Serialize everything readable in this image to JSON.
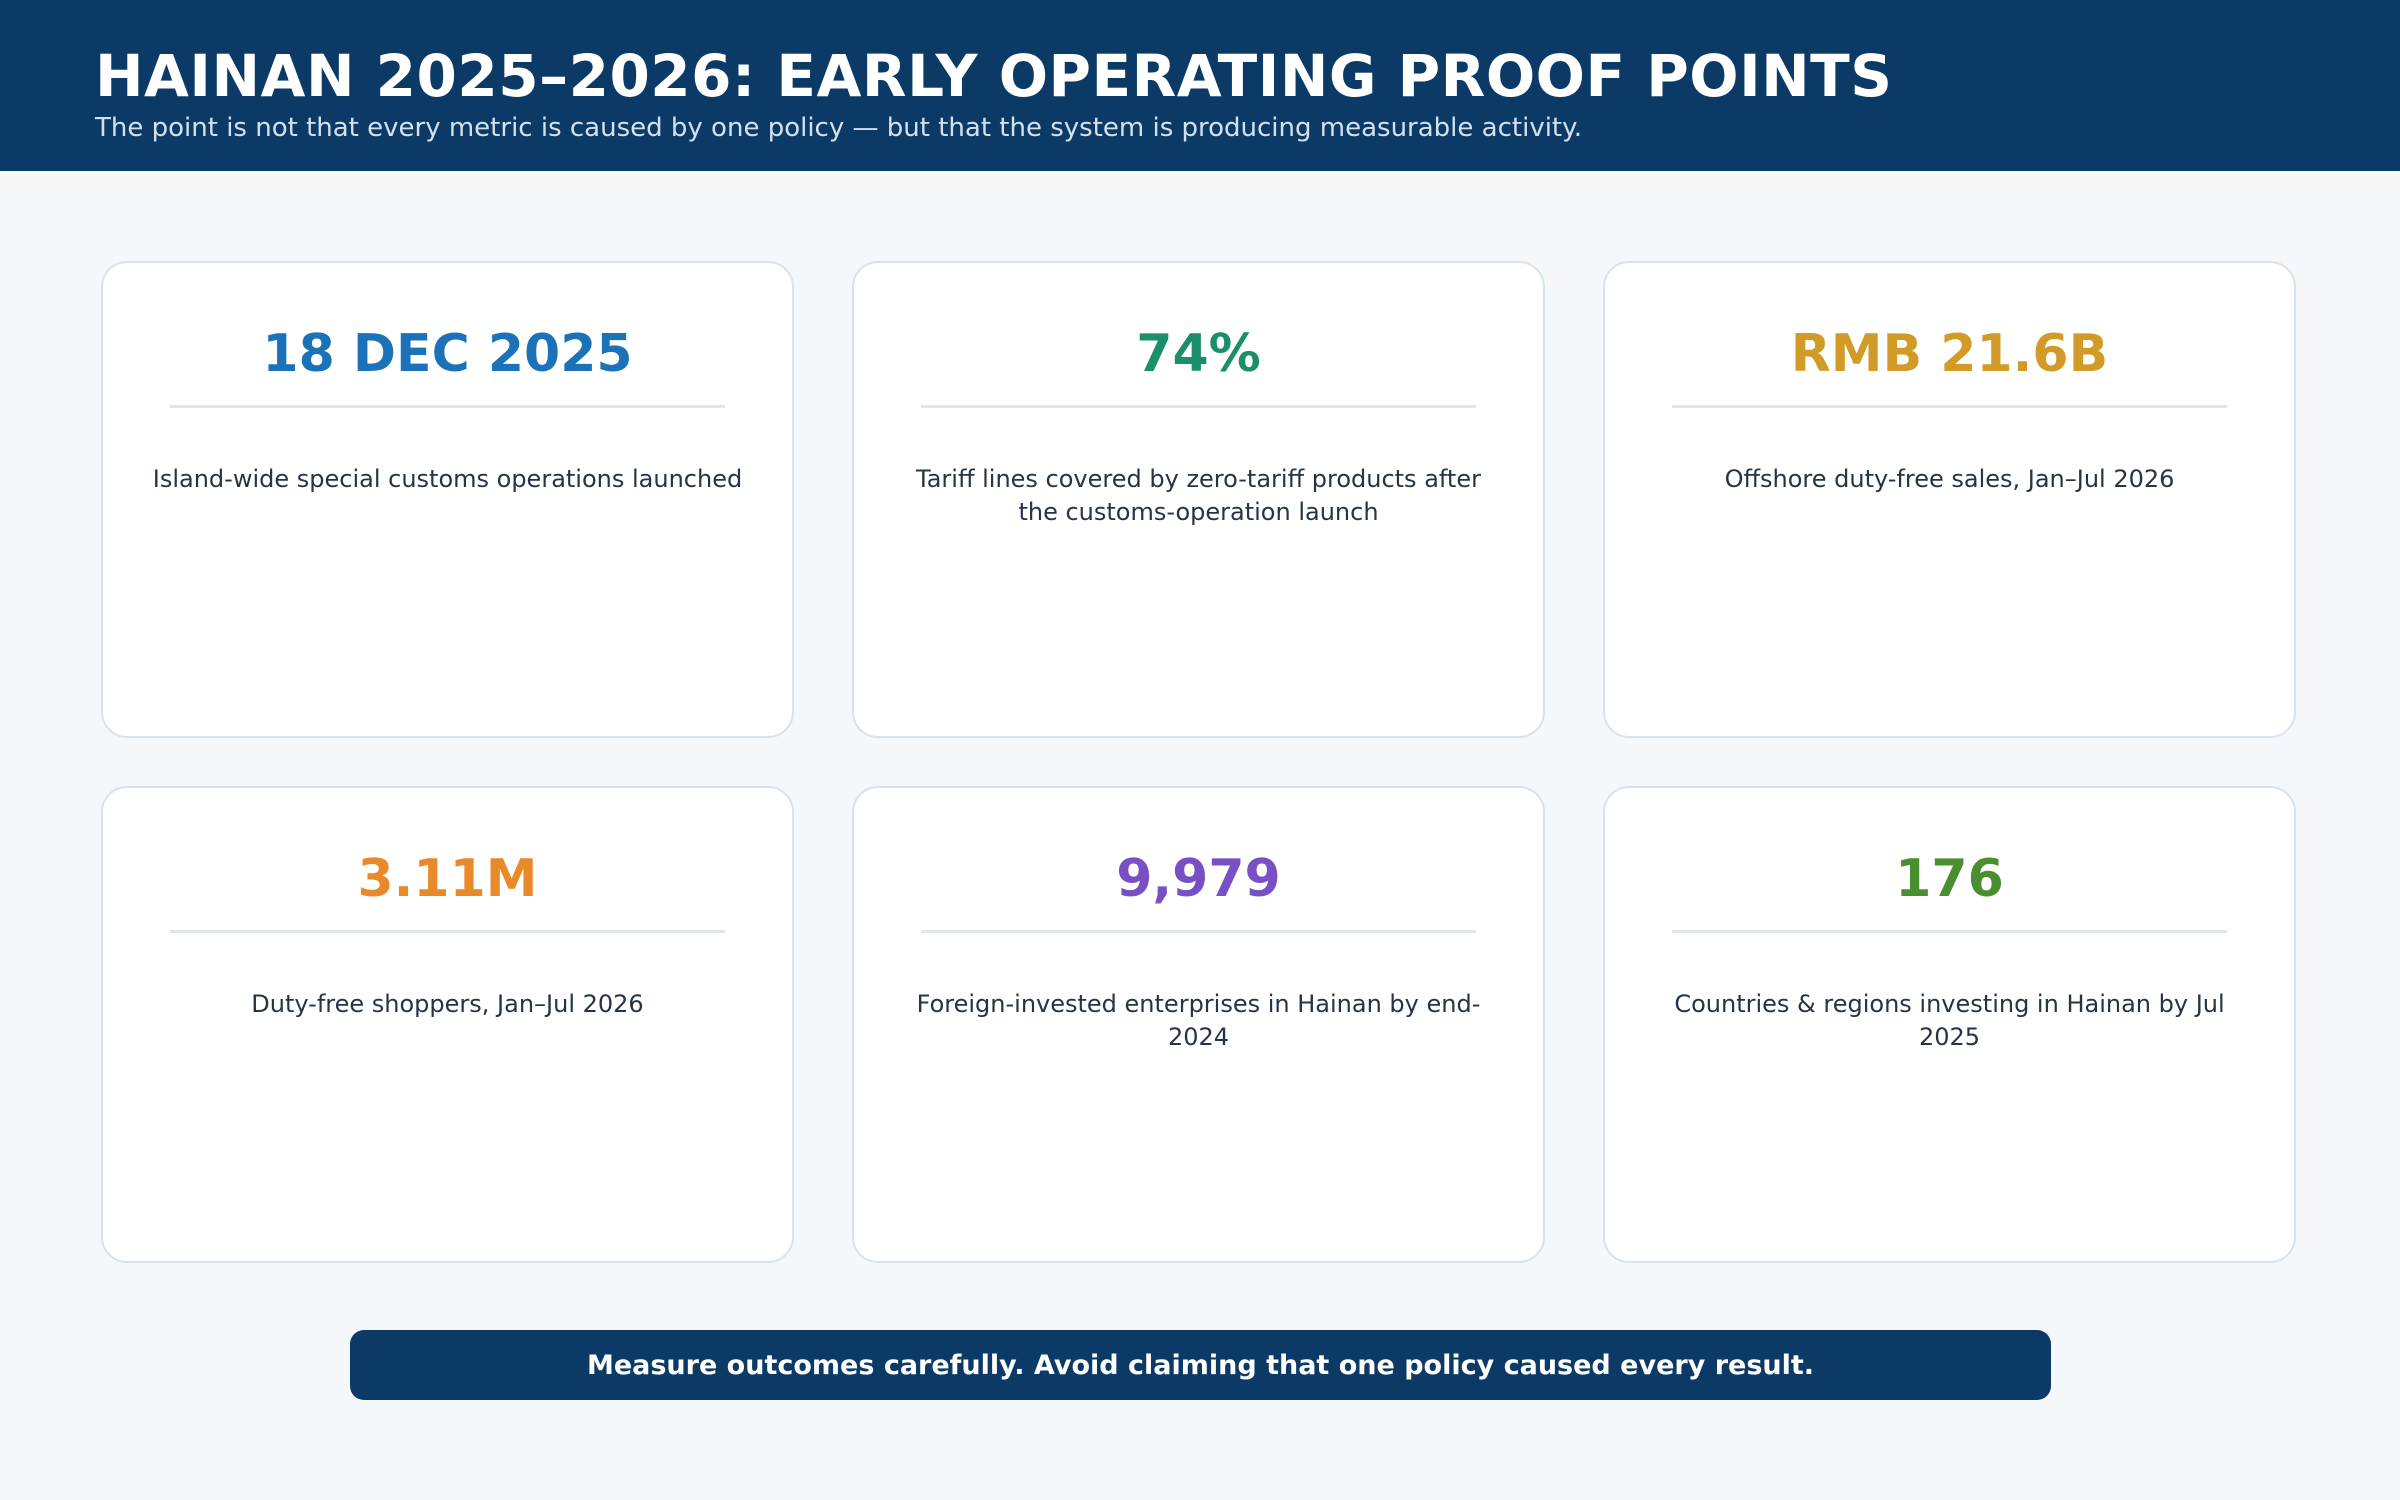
{
  "header": {
    "title": "HAINAN 2025–2026: EARLY OPERATING PROOF POINTS",
    "subtitle": "The point is not that every metric is caused by one policy — but that the system is producing measurable activity."
  },
  "cards": [
    {
      "value": "18 DEC 2025",
      "label": "Island-wide special customs operations launched",
      "color": "#1b72b8"
    },
    {
      "value": "74%",
      "label": "Tariff lines covered by zero-tariff products after the customs-operation launch",
      "color": "#1a8f6a"
    },
    {
      "value": "RMB 21.6B",
      "label": "Offshore duty-free sales, Jan–Jul 2026",
      "color": "#d29b28"
    },
    {
      "value": "3.11M",
      "label": "Duty-free shoppers, Jan–Jul 2026",
      "color": "#e8892a"
    },
    {
      "value": "9,979",
      "label": "Foreign-invested enterprises in Hainan by end-2024",
      "color": "#7750c4"
    },
    {
      "value": "176",
      "label": "Countries & regions investing in Hainan by Jul 2025",
      "color": "#4a8f2f"
    }
  ],
  "footer": {
    "text": "Measure outcomes carefully. Avoid claiming that one policy caused every result."
  },
  "colors": {
    "header_bg": "#0c3a66",
    "page_bg": "#f4f8fb",
    "card_border": "#d6e3ec"
  }
}
